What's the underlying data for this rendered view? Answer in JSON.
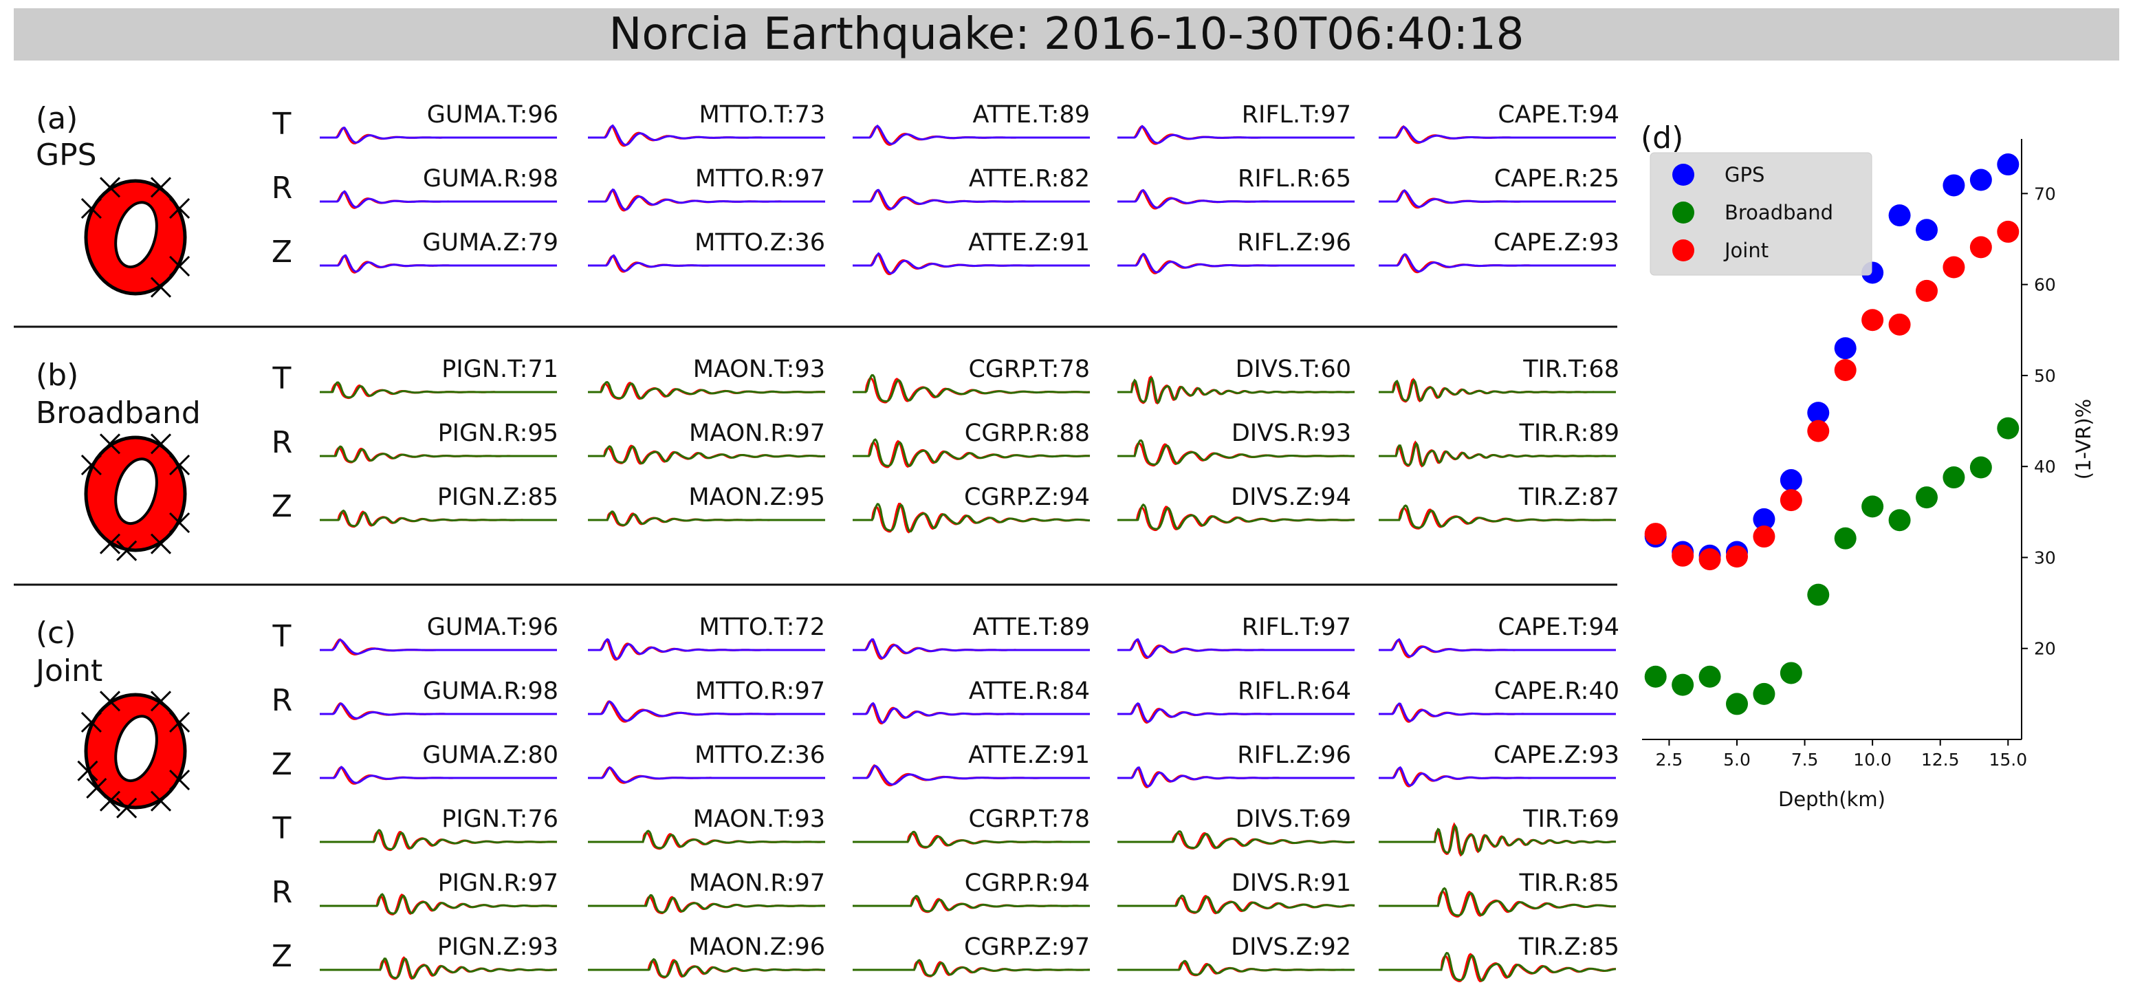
{
  "figure_title": "Norcia Earthquake: 2016-10-30T06:40:18",
  "colors": {
    "gps": "#0000ff",
    "broadband": "#008000",
    "joint": "#ff0000",
    "synthetic_wave": "#ff0000",
    "gps_wave": "#4400ff",
    "broadband_wave": "#2d6b00",
    "beachball_fill": "#ff0000",
    "title_bar": "#cccccc"
  },
  "panels": [
    {
      "label": "(a)",
      "name": "GPS",
      "rows": [
        {
          "component": "T",
          "stations": [
            "GUMA.T:96",
            "MTTO.T:73",
            "ATTE.T:89",
            "RIFL.T:97",
            "CAPE.T:94"
          ]
        },
        {
          "component": "R",
          "stations": [
            "GUMA.R:98",
            "MTTO.R:97",
            "ATTE.R:82",
            "RIFL.R:65",
            "CAPE.R:25"
          ]
        },
        {
          "component": "Z",
          "stations": [
            "GUMA.Z:79",
            "MTTO.Z:36",
            "ATTE.Z:91",
            "RIFL.Z:96",
            "CAPE.Z:93"
          ]
        }
      ]
    },
    {
      "label": "(b)",
      "name": "Broadband",
      "rows": [
        {
          "component": "T",
          "stations": [
            "PIGN.T:71",
            "MAON.T:93",
            "CGRP.T:78",
            "DIVS.T:60",
            "TIR.T:68"
          ]
        },
        {
          "component": "R",
          "stations": [
            "PIGN.R:95",
            "MAON.R:97",
            "CGRP.R:88",
            "DIVS.R:93",
            "TIR.R:89"
          ]
        },
        {
          "component": "Z",
          "stations": [
            "PIGN.Z:85",
            "MAON.Z:95",
            "CGRP.Z:94",
            "DIVS.Z:94",
            "TIR.Z:87"
          ]
        }
      ]
    },
    {
      "label": "(c)",
      "name": "Joint",
      "rows": [
        {
          "component": "T",
          "stations": [
            "GUMA.T:96",
            "MTTO.T:72",
            "ATTE.T:89",
            "RIFL.T:97",
            "CAPE.T:94"
          ]
        },
        {
          "component": "R",
          "stations": [
            "GUMA.R:98",
            "MTTO.R:97",
            "ATTE.R:84",
            "RIFL.R:64",
            "CAPE.R:40"
          ]
        },
        {
          "component": "Z",
          "stations": [
            "GUMA.Z:80",
            "MTTO.Z:36",
            "ATTE.Z:91",
            "RIFL.Z:96",
            "CAPE.Z:93"
          ]
        },
        {
          "component": "T",
          "stations": [
            "PIGN.T:76",
            "MAON.T:93",
            "CGRP.T:78",
            "DIVS.T:69",
            "TIR.T:69"
          ]
        },
        {
          "component": "R",
          "stations": [
            "PIGN.R:97",
            "MAON.R:97",
            "CGRP.R:94",
            "DIVS.R:91",
            "TIR.R:85"
          ]
        },
        {
          "component": "Z",
          "stations": [
            "PIGN.Z:93",
            "MAON.Z:96",
            "CGRP.Z:97",
            "DIVS.Z:92",
            "TIR.Z:85"
          ]
        }
      ]
    }
  ],
  "chart_data": {
    "type": "scatter",
    "panel_label": "(d)",
    "xlabel": "Depth(km)",
    "ylabel": "(1-VR)%",
    "xlim": [
      1.5,
      15.5
    ],
    "ylim": [
      10,
      76
    ],
    "xticks": [
      2.5,
      5.0,
      7.5,
      10.0,
      12.5,
      15.0
    ],
    "xtick_labels": [
      "2.5",
      "5.0",
      "7.5",
      "10.0",
      "12.5",
      "15.0"
    ],
    "yticks": [
      20,
      30,
      40,
      50,
      60,
      70
    ],
    "ytick_labels": [
      "20",
      "30",
      "40",
      "50",
      "60",
      "70"
    ],
    "y_axis_side": "right",
    "grid": false,
    "legend_position": "top-left",
    "series": [
      {
        "name": "GPS",
        "color": "#0000ff",
        "x": [
          2,
          3,
          4,
          5,
          6,
          7,
          8,
          9,
          10,
          11,
          12,
          13,
          14,
          15
        ],
        "y": [
          32.3,
          30.6,
          30.2,
          30.6,
          34.2,
          38.5,
          45.9,
          53.0,
          61.3,
          67.6,
          66.0,
          70.9,
          71.5,
          73.2
        ]
      },
      {
        "name": "Broadband",
        "color": "#008000",
        "x": [
          2,
          3,
          4,
          5,
          6,
          7,
          8,
          9,
          10,
          11,
          12,
          13,
          14,
          15
        ],
        "y": [
          16.9,
          16.0,
          16.9,
          13.9,
          15.0,
          17.3,
          25.9,
          32.1,
          35.6,
          34.1,
          36.6,
          38.8,
          39.9,
          44.2
        ]
      },
      {
        "name": "Joint",
        "color": "#ff0000",
        "x": [
          2,
          3,
          4,
          5,
          6,
          7,
          8,
          9,
          10,
          11,
          12,
          13,
          14,
          15
        ],
        "y": [
          32.6,
          30.2,
          29.8,
          30.1,
          32.3,
          36.3,
          43.9,
          50.6,
          56.1,
          55.6,
          59.3,
          61.9,
          64.1,
          65.8
        ]
      }
    ]
  }
}
